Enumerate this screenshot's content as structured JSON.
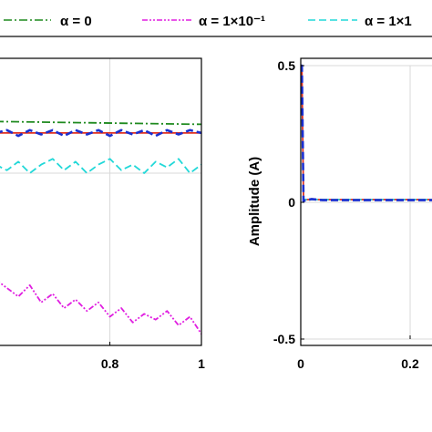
{
  "legend": {
    "entries": [
      {
        "label": "α = 0",
        "color": "#1f8a1f",
        "dash": "dashdot"
      },
      {
        "label": "α = 1×10⁻¹",
        "color": "#e01ee0",
        "dash": "dashdotdot"
      },
      {
        "label": "α = 1×1",
        "color": "#22d8d8",
        "dash": "dashed"
      }
    ]
  },
  "chart_data": [
    {
      "type": "line",
      "panel": "left",
      "title": "",
      "xlabel": "",
      "ylabel": "",
      "xlim": [
        0.55,
        1.0
      ],
      "ylim": [
        -0.6,
        0.4
      ],
      "x_ticks": [
        "0.8",
        "1"
      ],
      "x_tick_values": [
        0.8,
        1.0
      ],
      "y_grid_values": [
        0.0
      ],
      "grid": true,
      "series": [
        {
          "name": "α = 0",
          "color": "#1f8a1f",
          "style": "dashdot",
          "x": [
            0.55,
            1.0
          ],
          "y": [
            0.18,
            0.17
          ]
        },
        {
          "name": "",
          "color": "#e03020",
          "style": "solid",
          "x": [
            0.55,
            1.0
          ],
          "y": [
            0.14,
            0.14
          ]
        },
        {
          "name": "",
          "color": "#1a2fd0",
          "style": "dashed",
          "x": [
            0.55,
            0.575,
            0.6,
            0.625,
            0.65,
            0.675,
            0.7,
            0.725,
            0.75,
            0.775,
            0.8,
            0.825,
            0.85,
            0.875,
            0.9,
            0.925,
            0.95,
            0.975,
            1.0
          ],
          "y": [
            0.14,
            0.15,
            0.13,
            0.15,
            0.135,
            0.15,
            0.13,
            0.15,
            0.135,
            0.15,
            0.13,
            0.15,
            0.135,
            0.15,
            0.13,
            0.15,
            0.135,
            0.15,
            0.14
          ]
        },
        {
          "name": "α = 1×1",
          "color": "#22d8d8",
          "style": "dashed",
          "x": [
            0.55,
            0.575,
            0.6,
            0.625,
            0.65,
            0.675,
            0.7,
            0.725,
            0.75,
            0.775,
            0.8,
            0.825,
            0.85,
            0.875,
            0.9,
            0.925,
            0.95,
            0.975,
            1.0
          ],
          "y": [
            0.03,
            0.01,
            0.04,
            0.0,
            0.03,
            0.05,
            0.01,
            0.04,
            0.0,
            0.03,
            0.05,
            0.01,
            0.03,
            0.0,
            0.04,
            0.02,
            0.05,
            0.0,
            0.03
          ]
        },
        {
          "name": "α = 1×10⁻¹",
          "color": "#e01ee0",
          "style": "dashdotdot",
          "x": [
            0.55,
            0.575,
            0.6,
            0.625,
            0.65,
            0.675,
            0.7,
            0.725,
            0.75,
            0.775,
            0.8,
            0.825,
            0.85,
            0.875,
            0.9,
            0.925,
            0.95,
            0.975,
            1.0
          ],
          "y": [
            -0.37,
            -0.4,
            -0.43,
            -0.39,
            -0.45,
            -0.42,
            -0.47,
            -0.44,
            -0.48,
            -0.45,
            -0.5,
            -0.47,
            -0.52,
            -0.49,
            -0.51,
            -0.48,
            -0.53,
            -0.5,
            -0.56
          ]
        }
      ]
    },
    {
      "type": "line",
      "panel": "right",
      "title": "",
      "xlabel": "",
      "ylabel": "Amplitude (A)",
      "xlim": [
        0,
        0.25
      ],
      "ylim": [
        -0.5,
        0.5
      ],
      "x_ticks": [
        "0",
        "0.2"
      ],
      "x_tick_values": [
        0,
        0.2
      ],
      "y_ticks": [
        "0.5",
        "0",
        "-0.5"
      ],
      "y_tick_values": [
        0.5,
        0,
        -0.5
      ],
      "grid": true,
      "series": [
        {
          "name": "",
          "color": "#e03020",
          "style": "solid",
          "x": [
            0.0,
            0.002,
            0.005,
            0.25
          ],
          "y": [
            0.5,
            0.5,
            0.01,
            0.01
          ]
        },
        {
          "name": "α = 1×1",
          "color": "#22d8d8",
          "style": "dashed",
          "x": [
            0.0,
            0.002,
            0.005,
            0.25
          ],
          "y": [
            0.5,
            0.5,
            0.01,
            0.01
          ]
        },
        {
          "name": "",
          "color": "#1a2fd0",
          "style": "dashed",
          "x": [
            0.0,
            0.002,
            0.005,
            0.02,
            0.04,
            0.25
          ],
          "y": [
            0.5,
            0.5,
            0.005,
            0.012,
            0.008,
            0.008
          ]
        }
      ]
    }
  ]
}
